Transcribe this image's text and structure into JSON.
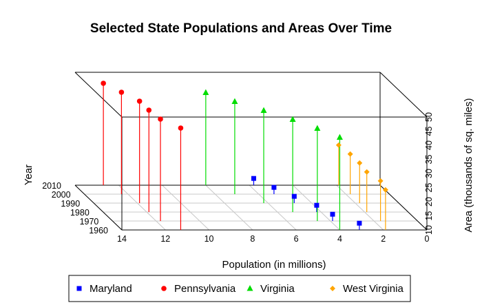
{
  "chart_data": {
    "type": "scatter",
    "projection": "3d",
    "title": "Selected State Populations and Areas Over Time",
    "xlabel": "Population (in millions)",
    "ylabel": "Year",
    "zlabel": "Area (thousands of sq. miles)",
    "xlim": [
      0,
      14
    ],
    "xticks": [
      14,
      12,
      10,
      8,
      6,
      4,
      2,
      0
    ],
    "x_reversed": true,
    "ylim": [
      1960,
      2010
    ],
    "yticks": [
      1960,
      1970,
      1980,
      1990,
      2000,
      2010
    ],
    "zlim": [
      10,
      50
    ],
    "zticks": [
      10,
      15,
      20,
      25,
      30,
      35,
      40,
      45,
      50
    ],
    "grid": true,
    "legend": "bottom",
    "series": [
      {
        "name": "Maryland",
        "marker": "square",
        "color": "#0000ff",
        "points": [
          {
            "year": 1960,
            "population": 3.1,
            "area": 12.4
          },
          {
            "year": 1970,
            "population": 3.9,
            "area": 12.4
          },
          {
            "year": 1980,
            "population": 4.2,
            "area": 12.4
          },
          {
            "year": 1990,
            "population": 4.8,
            "area": 12.4
          },
          {
            "year": 2000,
            "population": 5.3,
            "area": 12.4
          },
          {
            "year": 2010,
            "population": 5.8,
            "area": 12.4
          }
        ]
      },
      {
        "name": "Pennsylvania",
        "marker": "circle",
        "color": "#ff0000",
        "points": [
          {
            "year": 1960,
            "population": 11.3,
            "area": 46.1
          },
          {
            "year": 1970,
            "population": 11.8,
            "area": 46.1
          },
          {
            "year": 1980,
            "population": 11.9,
            "area": 46.1
          },
          {
            "year": 1990,
            "population": 11.9,
            "area": 46.1
          },
          {
            "year": 2000,
            "population": 12.3,
            "area": 46.1
          },
          {
            "year": 2010,
            "population": 12.7,
            "area": 46.1
          }
        ]
      },
      {
        "name": "Virginia",
        "marker": "triangle",
        "color": "#00dd00",
        "points": [
          {
            "year": 1960,
            "population": 4.0,
            "area": 42.8
          },
          {
            "year": 1970,
            "population": 4.6,
            "area": 42.8
          },
          {
            "year": 1980,
            "population": 5.3,
            "area": 42.8
          },
          {
            "year": 1990,
            "population": 6.2,
            "area": 42.8
          },
          {
            "year": 2000,
            "population": 7.1,
            "area": 42.8
          },
          {
            "year": 2010,
            "population": 8.0,
            "area": 42.8
          }
        ]
      },
      {
        "name": "West Virginia",
        "marker": "diamond",
        "color": "#ffa500",
        "points": [
          {
            "year": 1960,
            "population": 1.9,
            "area": 24.2
          },
          {
            "year": 1970,
            "population": 1.7,
            "area": 24.2
          },
          {
            "year": 1980,
            "population": 1.9,
            "area": 24.2
          },
          {
            "year": 1990,
            "population": 1.8,
            "area": 24.2
          },
          {
            "year": 2000,
            "population": 1.8,
            "area": 24.2
          },
          {
            "year": 2010,
            "population": 1.9,
            "area": 24.2
          }
        ]
      }
    ]
  }
}
